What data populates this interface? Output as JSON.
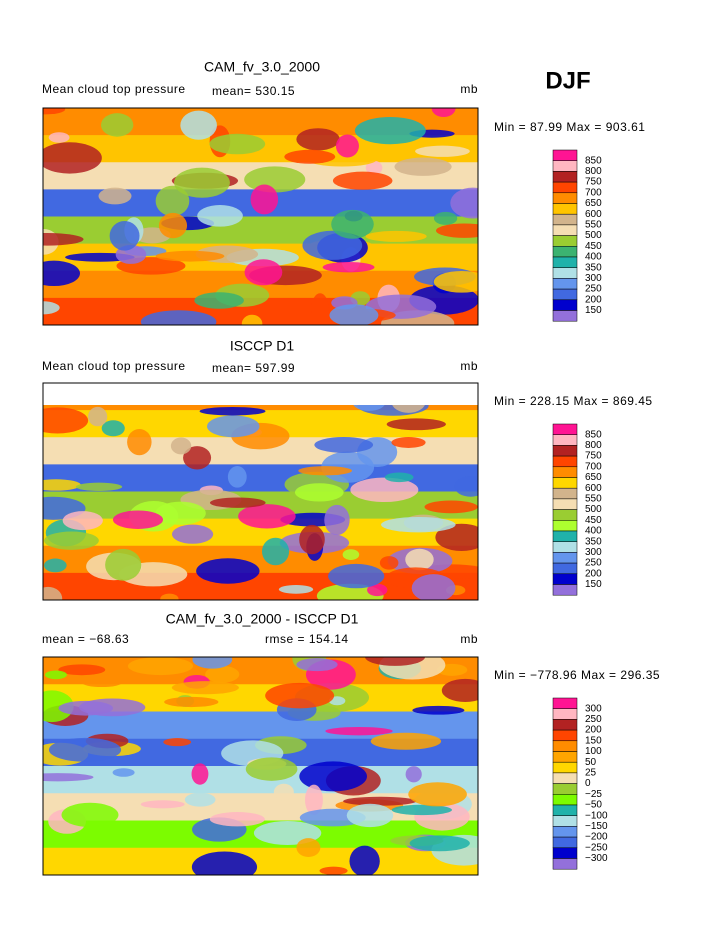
{
  "season": "DJF",
  "panels": [
    {
      "title": "CAM_fv_3.0_2000",
      "subtitle": "Mean cloud top pressure",
      "mean": "mean= 530.15",
      "units": "mb",
      "minmax": "Min =  87.99 Max = 903.61",
      "colorbar": {
        "labels": [
          "850",
          "800",
          "750",
          "700",
          "650",
          "600",
          "550",
          "500",
          "450",
          "400",
          "350",
          "300",
          "250",
          "200",
          "150"
        ],
        "colors": [
          "#ff1493",
          "#ffb6c1",
          "#b22222",
          "#ff4500",
          "#ff8c00",
          "#ffc400",
          "#d2b48c",
          "#f5deb3",
          "#9acd32",
          "#3cb371",
          "#20b2aa",
          "#b0e0e6",
          "#6495ed",
          "#4169e1",
          "#0000cd",
          "#9370db"
        ]
      }
    },
    {
      "title": "ISCCP D1",
      "subtitle": "Mean cloud top pressure",
      "mean": "mean= 597.99",
      "units": "mb",
      "minmax": "Min = 228.15 Max = 869.45",
      "colorbar": {
        "labels": [
          "850",
          "800",
          "750",
          "700",
          "650",
          "600",
          "550",
          "500",
          "450",
          "400",
          "350",
          "300",
          "250",
          "200",
          "150"
        ],
        "colors": [
          "#ff1493",
          "#ffb6c1",
          "#b22222",
          "#ff4500",
          "#ff8c00",
          "#ffd700",
          "#d2b48c",
          "#f5deb3",
          "#9acd32",
          "#adff2f",
          "#20b2aa",
          "#b0e0e6",
          "#6495ed",
          "#4169e1",
          "#0000cd",
          "#9370db"
        ]
      }
    },
    {
      "title": "CAM_fv_3.0_2000 - ISCCP D1",
      "mean": "mean = −68.63",
      "rmse": "rmse = 154.14",
      "units": "mb",
      "minmax": "Min = −778.96 Max = 296.35",
      "colorbar": {
        "labels": [
          "300",
          "250",
          "200",
          "150",
          "100",
          "50",
          "25",
          "0",
          "−25",
          "−50",
          "−100",
          "−150",
          "−200",
          "−250",
          "−300"
        ],
        "colors": [
          "#ff1493",
          "#ffb6c1",
          "#b22222",
          "#ff4500",
          "#ff8c00",
          "#ffa500",
          "#ffd700",
          "#f5deb3",
          "#9acd32",
          "#7cfc00",
          "#20b2aa",
          "#b0e0e6",
          "#6495ed",
          "#4169e1",
          "#0000cd",
          "#9370db"
        ]
      }
    }
  ]
}
